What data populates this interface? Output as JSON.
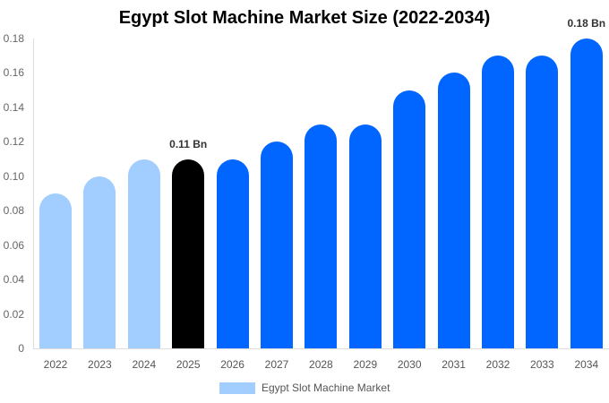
{
  "chart_data": {
    "type": "bar",
    "title": "Egypt Slot Machine Market Size (2022-2034)",
    "xlabel": "",
    "ylabel": "",
    "ylim": [
      0,
      0.18
    ],
    "yticks": [
      "0",
      "0.02",
      "0.04",
      "0.06",
      "0.08",
      "0.10",
      "0.12",
      "0.14",
      "0.16",
      "0.18"
    ],
    "categories": [
      "2022",
      "2023",
      "2024",
      "2025",
      "2026",
      "2027",
      "2028",
      "2029",
      "2030",
      "2031",
      "2032",
      "2033",
      "2034"
    ],
    "series": [
      {
        "name": "Egypt Slot Machine Market",
        "values": [
          0.09,
          0.1,
          0.11,
          0.11,
          0.11,
          0.12,
          0.13,
          0.13,
          0.15,
          0.16,
          0.17,
          0.17,
          0.18
        ]
      }
    ],
    "bar_colors": [
      "#a1cdff",
      "#a1cdff",
      "#a1cdff",
      "#000000",
      "#0066ff",
      "#0066ff",
      "#0066ff",
      "#0066ff",
      "#0066ff",
      "#0066ff",
      "#0066ff",
      "#0066ff",
      "#0066ff"
    ],
    "annotations": [
      {
        "category": "2025",
        "text": "0.11 Bn"
      },
      {
        "category": "2034",
        "text": "0.18 Bn"
      }
    ],
    "legend": {
      "position": "bottom",
      "entries": [
        "Egypt Slot Machine Market"
      ],
      "color": "#a1cdff"
    },
    "grid": false
  }
}
